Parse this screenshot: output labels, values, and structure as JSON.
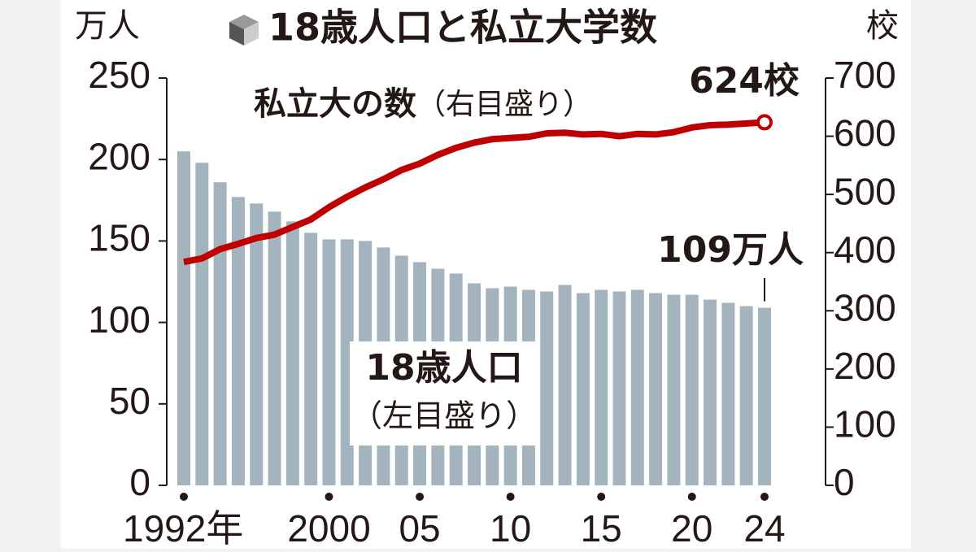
{
  "chart_data": {
    "type": "bar-line",
    "title": "18歳人口と私立大学数",
    "y_unit": "万人",
    "y2_unit": "校",
    "categories": [
      "1992年",
      null,
      null,
      null,
      null,
      null,
      null,
      null,
      "2000",
      null,
      null,
      null,
      null,
      "05",
      null,
      null,
      null,
      null,
      "10",
      null,
      null,
      null,
      null,
      "15",
      null,
      null,
      null,
      null,
      "20",
      null,
      null,
      null,
      "24"
    ],
    "series": [
      {
        "name": "18歳人口",
        "axis_note": "（左目盛り）",
        "type": "bar",
        "color": "#a3b4bf",
        "values": [
          205,
          198,
          186,
          177,
          173,
          168,
          162,
          155,
          151,
          151,
          150,
          146,
          141,
          137,
          133,
          130,
          124,
          121,
          122,
          120,
          119,
          123,
          118,
          120,
          119,
          120,
          118,
          117,
          117,
          114,
          112,
          110,
          109
        ],
        "value_labels": [
          null,
          null,
          null,
          null,
          null,
          null,
          null,
          null,
          null,
          null,
          null,
          null,
          null,
          null,
          null,
          null,
          null,
          null,
          null,
          null,
          null,
          null,
          null,
          null,
          null,
          null,
          null,
          null,
          null,
          null,
          null,
          null,
          "109万人"
        ]
      },
      {
        "name": "私立大の数",
        "axis_note": "（右目盛り）",
        "type": "line",
        "axis": "y2",
        "color": "#c00000",
        "values": [
          384,
          390,
          406,
          415,
          425,
          431,
          444,
          457,
          478,
          496,
          512,
          526,
          542,
          553,
          568,
          580,
          589,
          595,
          597,
          599,
          605,
          606,
          603,
          604,
          600,
          604,
          603,
          607,
          615,
          619,
          620,
          622,
          624
        ],
        "value_labels": [
          null,
          null,
          null,
          null,
          null,
          null,
          null,
          null,
          null,
          null,
          null,
          null,
          null,
          null,
          null,
          null,
          null,
          null,
          null,
          null,
          null,
          null,
          null,
          null,
          null,
          null,
          null,
          null,
          null,
          null,
          null,
          null,
          "624校"
        ]
      }
    ],
    "ylim": [
      0,
      250
    ],
    "yticks": [
      0,
      50,
      100,
      150,
      200,
      250
    ],
    "y2lim": [
      0,
      700
    ],
    "y2ticks": [
      0,
      100,
      200,
      300,
      400,
      500,
      600,
      700
    ]
  }
}
